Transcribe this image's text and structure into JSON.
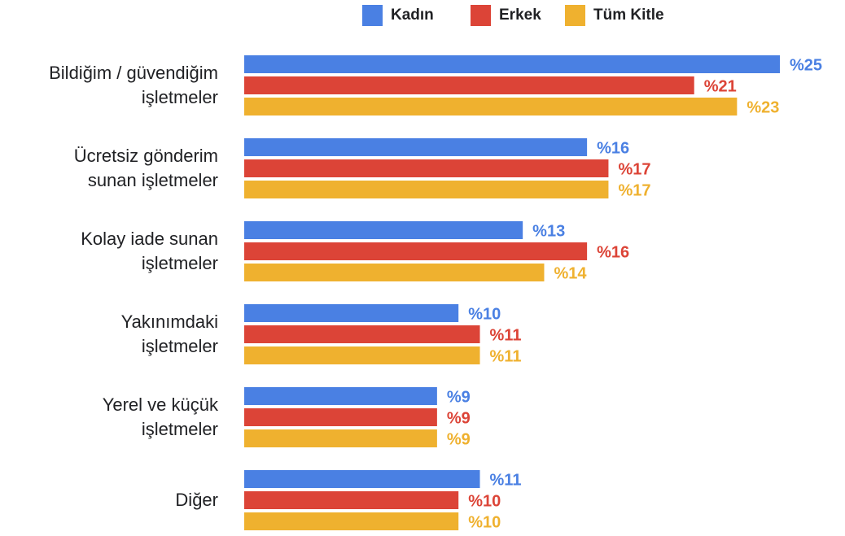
{
  "chart_data": {
    "type": "bar",
    "orientation": "horizontal",
    "categories": [
      "Bildiğim / güvendiğim\nişletmeler",
      "Ücretsiz gönderim\nsunan işletmeler",
      "Kolay iade sunan\nişletmeler",
      "Yakınımdaki\nişletmeler",
      "Yerel ve küçük\nişletmeler",
      "Diğer"
    ],
    "series": [
      {
        "name": "Kadın",
        "color": "#4a80e3",
        "values": [
          25,
          16,
          13,
          10,
          9,
          11
        ],
        "value_labels": [
          "%25",
          "%16",
          "%13",
          "%10",
          "%9",
          "%11"
        ]
      },
      {
        "name": "Erkek",
        "color": "#dc4437",
        "values": [
          21,
          17,
          16,
          11,
          9,
          10
        ],
        "value_labels": [
          "%21",
          "%17",
          "%16",
          "%11",
          "%9",
          "%10"
        ]
      },
      {
        "name": "Tüm Kitle",
        "color": "#efb12f",
        "values": [
          23,
          17,
          14,
          11,
          9,
          10
        ],
        "value_labels": [
          "%23",
          "%17",
          "%14",
          "%11",
          "%9",
          "%10"
        ]
      }
    ],
    "legend": "top"
  }
}
